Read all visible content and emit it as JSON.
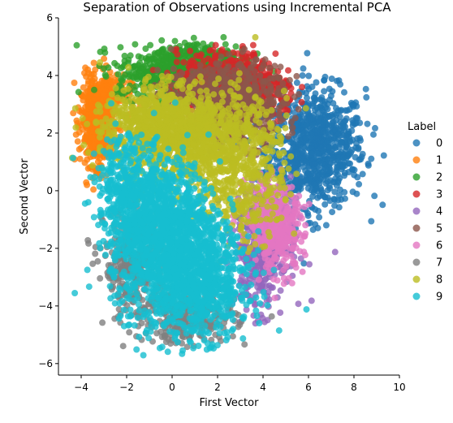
{
  "chart_data": {
    "type": "scatter",
    "title": "Separation of Observations using Incremental PCA",
    "xlabel": "First Vector",
    "ylabel": "Second Vector",
    "xlim": [
      -5,
      10
    ],
    "ylim": [
      -6.4,
      6
    ],
    "xticks": [
      -4,
      -2,
      0,
      2,
      4,
      6,
      8,
      10
    ],
    "yticks": [
      -6,
      -4,
      -2,
      0,
      2,
      4,
      6
    ],
    "legend": {
      "title": "Label",
      "placement": "right"
    },
    "series": [
      {
        "name": "0",
        "color": "#1f77b4",
        "clusters": [
          {
            "cx": 6.4,
            "cy": 1.5,
            "sx": 1.05,
            "sy": 1.0,
            "n": 700
          },
          {
            "cx": 5.0,
            "cy": 1.2,
            "sx": 1.2,
            "sy": 1.3,
            "n": 180
          }
        ]
      },
      {
        "name": "1",
        "color": "#ff7f0e",
        "clusters": [
          {
            "cx": -3.3,
            "cy": 2.4,
            "sx": 0.35,
            "sy": 0.75,
            "n": 500
          },
          {
            "cx": -2.8,
            "cy": 3.3,
            "sx": 0.5,
            "sy": 0.35,
            "n": 150
          }
        ]
      },
      {
        "name": "2",
        "color": "#2ca02c",
        "clusters": [
          {
            "cx": 0.2,
            "cy": 4.1,
            "sx": 1.3,
            "sy": 0.45,
            "n": 550
          },
          {
            "cx": 1.5,
            "cy": 4.5,
            "sx": 0.9,
            "sy": 0.35,
            "n": 150
          }
        ]
      },
      {
        "name": "3",
        "color": "#d62728",
        "clusters": [
          {
            "cx": 2.4,
            "cy": 3.7,
            "sx": 1.1,
            "sy": 0.55,
            "n": 550
          },
          {
            "cx": 3.9,
            "cy": 3.4,
            "sx": 0.8,
            "sy": 0.5,
            "n": 150
          }
        ]
      },
      {
        "name": "4",
        "color": "#9467bd",
        "clusters": [
          {
            "cx": 3.8,
            "cy": -2.2,
            "sx": 0.55,
            "sy": 1.0,
            "n": 300
          },
          {
            "cx": 4.6,
            "cy": -1.4,
            "sx": 0.6,
            "sy": 0.8,
            "n": 120
          }
        ]
      },
      {
        "name": "5",
        "color": "#8c564b",
        "clusters": [
          {
            "cx": 3.0,
            "cy": 3.0,
            "sx": 1.0,
            "sy": 0.7,
            "n": 500
          },
          {
            "cx": 1.2,
            "cy": 3.4,
            "sx": 1.0,
            "sy": 0.5,
            "n": 200
          }
        ]
      },
      {
        "name": "6",
        "color": "#e377c2",
        "clusters": [
          {
            "cx": 4.7,
            "cy": -1.4,
            "sx": 0.55,
            "sy": 0.7,
            "n": 300
          },
          {
            "cx": 4.0,
            "cy": -0.5,
            "sx": 0.6,
            "sy": 0.7,
            "n": 120
          }
        ]
      },
      {
        "name": "7",
        "color": "#7f7f7f",
        "clusters": [
          {
            "cx": -1.6,
            "cy": -2.6,
            "sx": 0.7,
            "sy": 1.0,
            "n": 350
          },
          {
            "cx": 0.8,
            "cy": -4.4,
            "sx": 1.0,
            "sy": 0.45,
            "n": 250
          }
        ]
      },
      {
        "name": "8",
        "color": "#bcbd22",
        "clusters": [
          {
            "cx": 0.6,
            "cy": 1.9,
            "sx": 1.6,
            "sy": 0.8,
            "n": 1000
          },
          {
            "cx": 3.0,
            "cy": 0.6,
            "sx": 1.0,
            "sy": 1.2,
            "n": 400
          },
          {
            "cx": -1.0,
            "cy": 2.4,
            "sx": 1.0,
            "sy": 0.6,
            "n": 300
          }
        ]
      },
      {
        "name": "9",
        "color": "#17becf",
        "clusters": [
          {
            "cx": -0.3,
            "cy": -1.6,
            "sx": 1.2,
            "sy": 1.3,
            "n": 1400
          },
          {
            "cx": 1.2,
            "cy": -3.3,
            "sx": 1.1,
            "sy": 0.9,
            "n": 700
          },
          {
            "cx": -1.9,
            "cy": 0.2,
            "sx": 0.7,
            "sy": 0.9,
            "n": 300
          }
        ]
      }
    ]
  }
}
